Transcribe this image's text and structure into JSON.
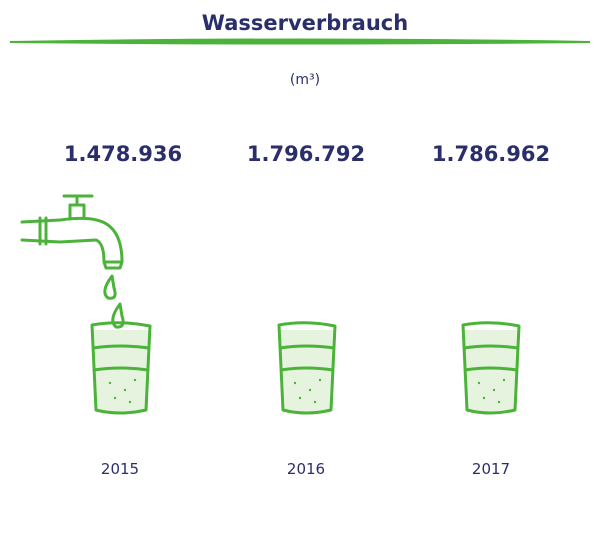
{
  "title": "Wasserverbrauch",
  "unit": "(m³)",
  "items": [
    {
      "value": "1.478.936",
      "year": "2015"
    },
    {
      "value": "1.796.792",
      "year": "2016"
    },
    {
      "value": "1.786.962",
      "year": "2017"
    }
  ]
}
